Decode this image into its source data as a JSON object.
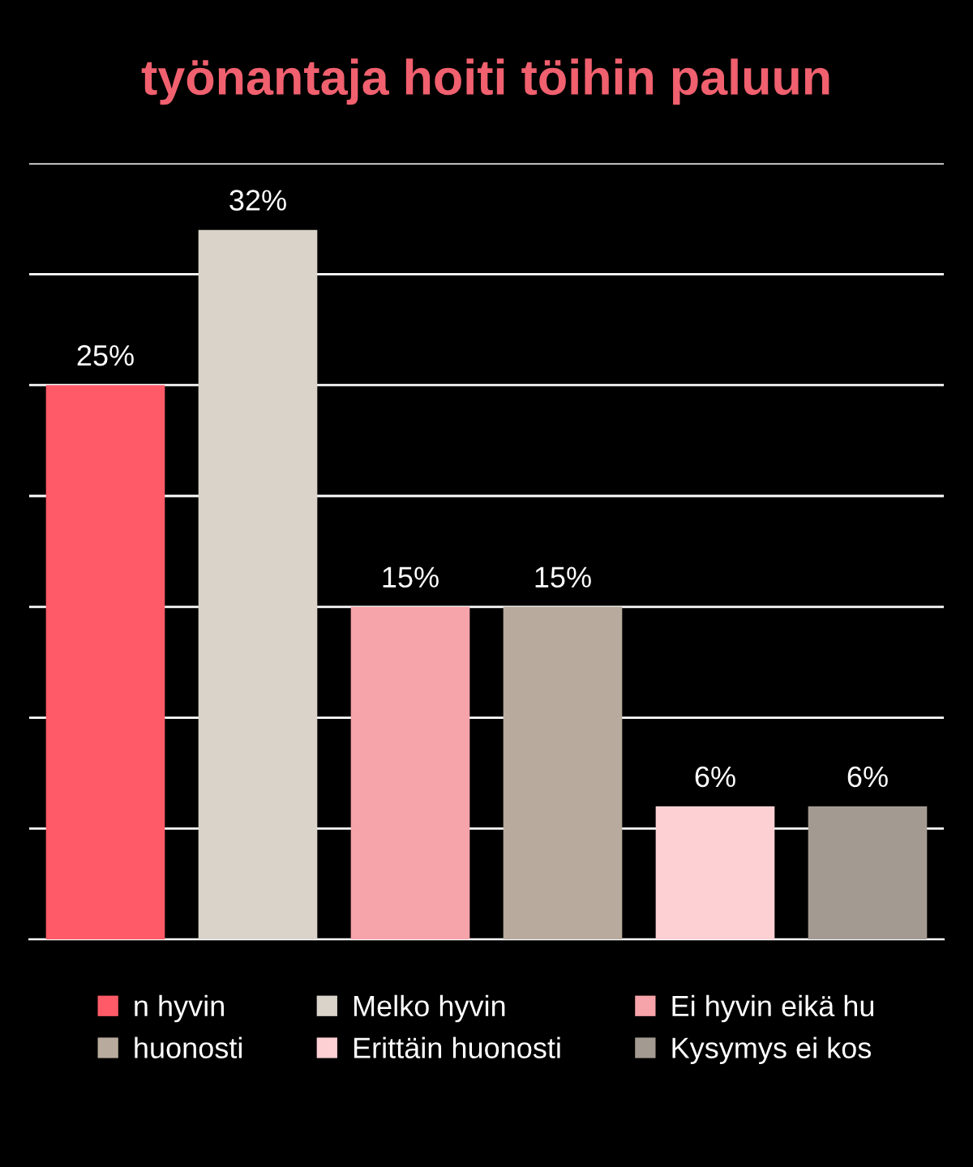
{
  "chart_data": {
    "type": "bar",
    "title": "työnantaja hoiti töihin paluun",
    "stacked": true,
    "categories": [
      null,
      null,
      null,
      null,
      null,
      null
    ],
    "series": [
      {
        "name": "n hyvin",
        "color": "#ff5a68",
        "values": [
          25,
          null,
          null,
          null,
          null,
          null
        ],
        "value_labels": [
          "25%",
          null,
          null,
          null,
          null,
          null
        ]
      },
      {
        "name": "Melko hyvin",
        "color": "#d9d3ca",
        "values": [
          null,
          32,
          null,
          null,
          null,
          null
        ],
        "value_labels": [
          null,
          "32%",
          null,
          null,
          null,
          null
        ]
      },
      {
        "name": "Ei hyvin eikä hu",
        "color": "#f7a3aa",
        "values": [
          null,
          null,
          15,
          null,
          null,
          null
        ],
        "value_labels": [
          null,
          null,
          "15%",
          null,
          null,
          null
        ]
      },
      {
        "name": "huonosti",
        "color": "#b8ab9d",
        "values": [
          null,
          null,
          null,
          15,
          null,
          null
        ],
        "value_labels": [
          null,
          null,
          null,
          "15%",
          null,
          null
        ]
      },
      {
        "name": "Erittäin huonosti",
        "color": "#fdd0d3",
        "values": [
          null,
          null,
          null,
          null,
          6,
          null
        ],
        "value_labels": [
          null,
          null,
          null,
          null,
          "6%",
          null
        ]
      },
      {
        "name": "Kysymys ei kos",
        "color": "#a39b92",
        "values": [
          null,
          null,
          null,
          null,
          null,
          6
        ],
        "value_labels": [
          null,
          null,
          null,
          null,
          null,
          "6%"
        ]
      }
    ],
    "ylim": [
      0,
      35
    ],
    "yticks": [
      {
        "value": 0,
        "label": null
      },
      {
        "value": 5,
        "label": null
      },
      {
        "value": 10,
        "label": null
      },
      {
        "value": 15,
        "label": null
      },
      {
        "value": 20,
        "label": null
      },
      {
        "value": 25,
        "label": null
      },
      {
        "value": 30,
        "label": null
      },
      {
        "value": 35,
        "label": null
      }
    ],
    "grid": "y",
    "legend": "bottom"
  }
}
